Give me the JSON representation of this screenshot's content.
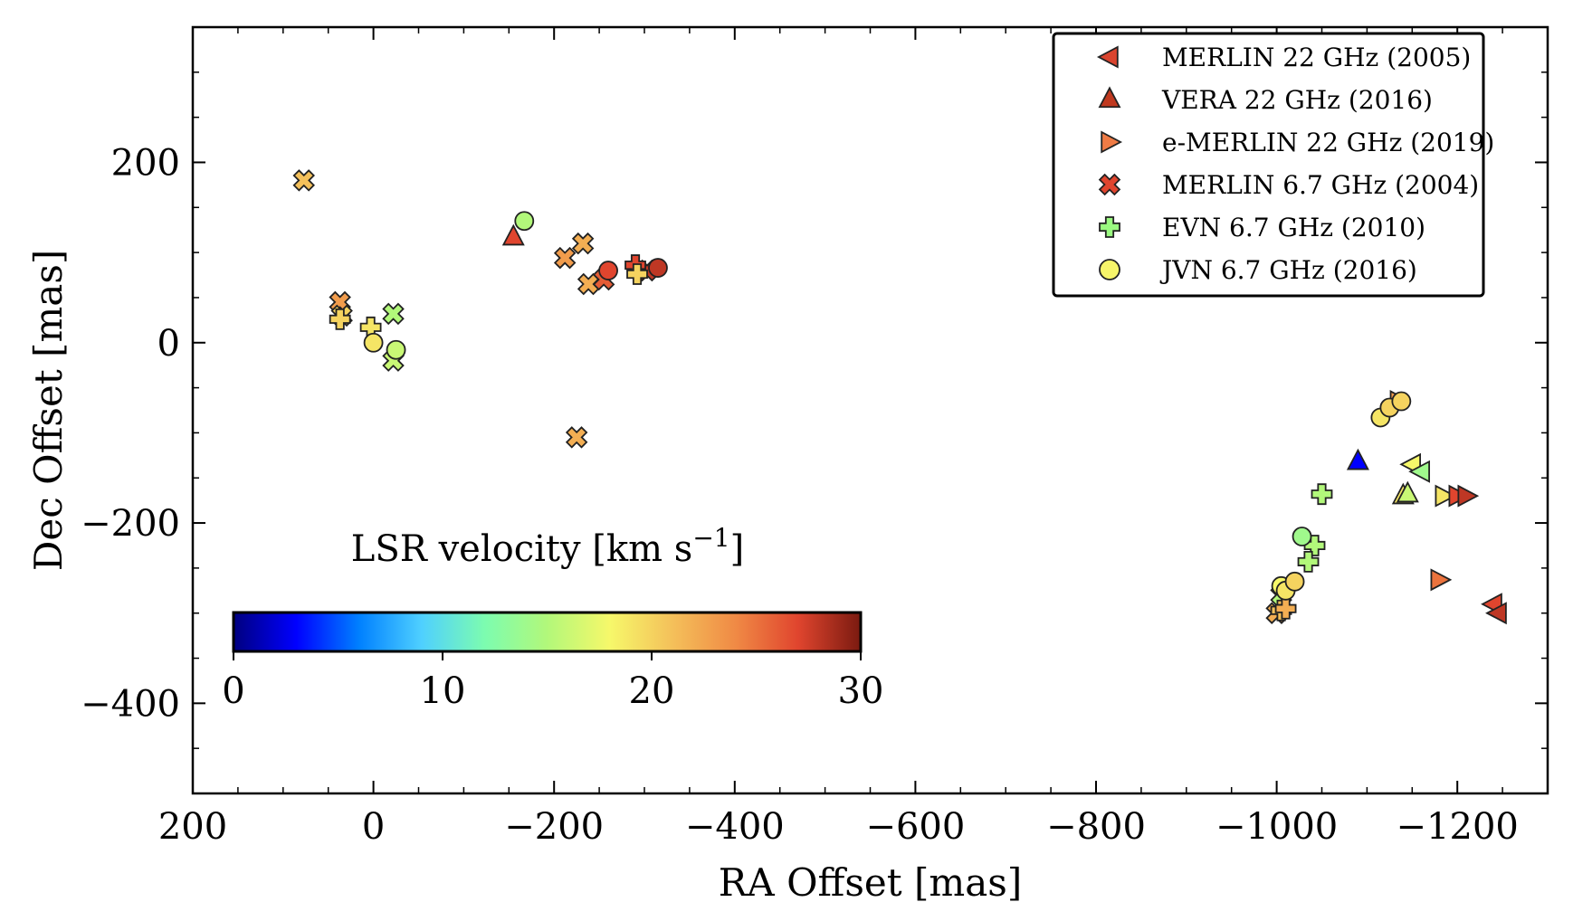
{
  "chart_data": {
    "type": "scatter",
    "xlabel": "RA Offset [mas]",
    "ylabel": "Dec Offset [mas]",
    "xlim": [
      200,
      -1300
    ],
    "ylim": [
      -500,
      350
    ],
    "x_ticks": [
      200,
      0,
      -200,
      -400,
      -600,
      -800,
      -1000,
      -1200
    ],
    "x_tick_labels": [
      "200",
      "0",
      "−200",
      "−400",
      "−600",
      "−800",
      "−1000",
      "−1200"
    ],
    "y_ticks": [
      200,
      0,
      -200,
      -400
    ],
    "y_tick_labels": [
      "200",
      "0",
      "−200",
      "−400"
    ],
    "grid": false,
    "legend_position": "top-right",
    "colorbar": {
      "label": "LSR velocity [km s",
      "label_sup": "−1",
      "label_tail": "]",
      "range": [
        0,
        30
      ],
      "ticks": [
        0,
        10,
        20,
        30
      ],
      "tick_labels": [
        "0",
        "10",
        "20",
        "30"
      ],
      "colormap": [
        "#00007f",
        "#0000ff",
        "#0080ff",
        "#4fd0ff",
        "#7cfcb0",
        "#b2f87a",
        "#f6f86a",
        "#f4c05a",
        "#f08a45",
        "#e0452e",
        "#7a1a10"
      ]
    },
    "series": [
      {
        "name": "MERLIN 22 GHz (2005)",
        "marker": "triangle-left",
        "legend_color": "#d9442e",
        "points": [
          {
            "x": -1240,
            "y": -290,
            "v": 27
          },
          {
            "x": -1245,
            "y": -300,
            "v": 28
          },
          {
            "x": -1150,
            "y": -135,
            "v": 18
          },
          {
            "x": -1160,
            "y": -143,
            "v": 14
          }
        ]
      },
      {
        "name": "VERA 22 GHz (2016)",
        "marker": "triangle-up",
        "legend_color": "#c0391f",
        "points": [
          {
            "x": -155,
            "y": 117,
            "v": 27
          },
          {
            "x": -1090,
            "y": -132,
            "v": 3
          },
          {
            "x": -1140,
            "y": -170,
            "v": 19
          },
          {
            "x": -1145,
            "y": -168,
            "v": 16
          }
        ]
      },
      {
        "name": "e-MERLIN 22 GHz (2019)",
        "marker": "triangle-right",
        "legend_color": "#ef7b45",
        "points": [
          {
            "x": -1135,
            "y": -65,
            "v": 23
          },
          {
            "x": -1185,
            "y": -170,
            "v": 19
          },
          {
            "x": -1200,
            "y": -170,
            "v": 27
          },
          {
            "x": -1210,
            "y": -170,
            "v": 28
          },
          {
            "x": -1180,
            "y": -263,
            "v": 25
          }
        ]
      },
      {
        "name": "MERLIN 6.7 GHz (2004)",
        "marker": "x",
        "legend_color": "#e0452e",
        "points": [
          {
            "x": 77,
            "y": 180,
            "v": 21
          },
          {
            "x": 37,
            "y": 45,
            "v": 23
          },
          {
            "x": 35,
            "y": 30,
            "v": 20
          },
          {
            "x": -22,
            "y": 32,
            "v": 15
          },
          {
            "x": -22,
            "y": -20,
            "v": 16
          },
          {
            "x": -212,
            "y": 94,
            "v": 23
          },
          {
            "x": -232,
            "y": 110,
            "v": 22
          },
          {
            "x": -238,
            "y": 65,
            "v": 22
          },
          {
            "x": -225,
            "y": -105,
            "v": 22
          },
          {
            "x": -255,
            "y": 70,
            "v": 26
          },
          {
            "x": -303,
            "y": 80,
            "v": 28
          },
          {
            "x": -1000,
            "y": -300,
            "v": 22
          },
          {
            "x": -1005,
            "y": -280,
            "v": 15
          }
        ]
      },
      {
        "name": "EVN 6.7 GHz (2010)",
        "marker": "plus",
        "legend_color": "#9afa80",
        "points": [
          {
            "x": 37,
            "y": 26,
            "v": 20
          },
          {
            "x": 3,
            "y": 17,
            "v": 19
          },
          {
            "x": -290,
            "y": 86,
            "v": 27
          },
          {
            "x": -292,
            "y": 76,
            "v": 20
          },
          {
            "x": -1050,
            "y": -168,
            "v": 15
          },
          {
            "x": -1042,
            "y": -225,
            "v": 15
          },
          {
            "x": -1035,
            "y": -243,
            "v": 15
          },
          {
            "x": -1005,
            "y": -297,
            "v": 21
          },
          {
            "x": -1010,
            "y": -295,
            "v": 22
          }
        ]
      },
      {
        "name": "JVN 6.7 GHz (2016)",
        "marker": "circle",
        "legend_color": "#f7f56a",
        "points": [
          {
            "x": 0,
            "y": 0,
            "v": 19
          },
          {
            "x": -25,
            "y": -8,
            "v": 16
          },
          {
            "x": -167,
            "y": 135,
            "v": 15
          },
          {
            "x": -260,
            "y": 80,
            "v": 27
          },
          {
            "x": -315,
            "y": 83,
            "v": 28
          },
          {
            "x": -1028,
            "y": -215,
            "v": 14
          },
          {
            "x": -1005,
            "y": -270,
            "v": 18
          },
          {
            "x": -1010,
            "y": -275,
            "v": 19
          },
          {
            "x": -1020,
            "y": -265,
            "v": 20
          },
          {
            "x": -1115,
            "y": -83,
            "v": 19
          },
          {
            "x": -1125,
            "y": -72,
            "v": 20
          },
          {
            "x": -1138,
            "y": -65,
            "v": 20
          }
        ]
      }
    ]
  }
}
